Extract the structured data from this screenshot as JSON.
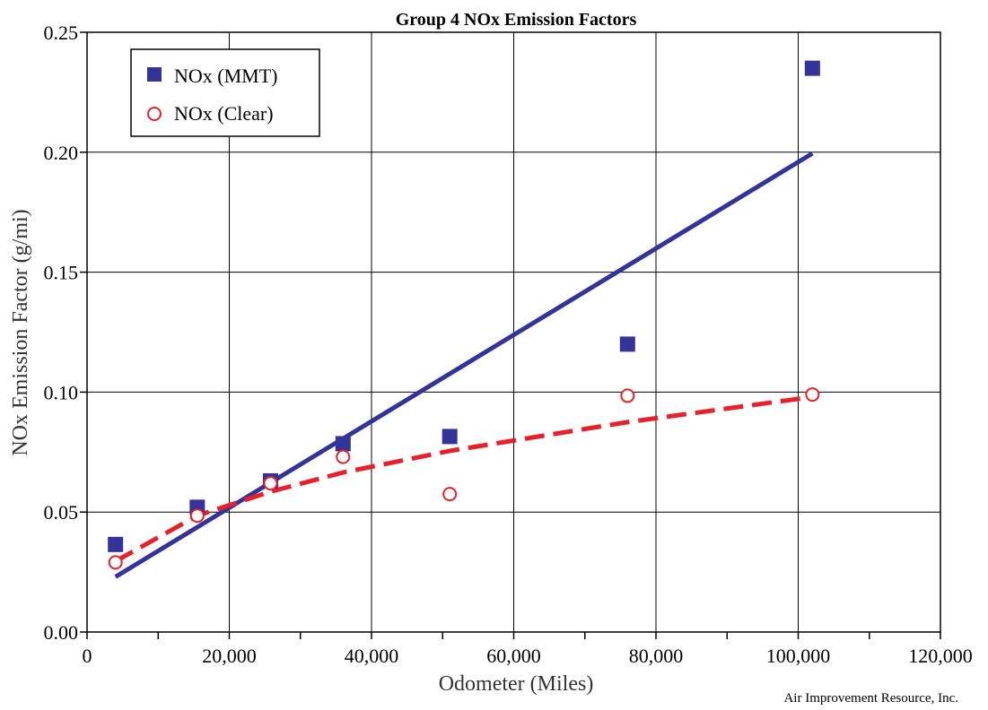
{
  "chart_data": {
    "type": "scatter",
    "title": "Group 4 NOx Emission Factors",
    "xlabel": "Odometer (Miles)",
    "ylabel": "NOx Emission Factor (g/mi)",
    "xlim": [
      0,
      120000
    ],
    "ylim": [
      0,
      0.25
    ],
    "x_ticks": [
      "0",
      "20,000",
      "40,000",
      "60,000",
      "80,000",
      "100,000",
      "120,000"
    ],
    "y_ticks": [
      "0.00",
      "0.05",
      "0.10",
      "0.15",
      "0.20",
      "0.25"
    ],
    "grid": true,
    "legend_position": "top-left",
    "series": [
      {
        "name": "NOx (MMT)",
        "marker": "filled-square",
        "color": "#33339a",
        "x": [
          4000,
          15500,
          25800,
          36000,
          51000,
          76000,
          102000
        ],
        "y": [
          0.0365,
          0.052,
          0.063,
          0.0785,
          0.0815,
          0.12,
          0.235
        ]
      },
      {
        "name": "NOx (Clear)",
        "marker": "open-circle",
        "color": "#e8202a",
        "x": [
          4000,
          15500,
          25800,
          36000,
          51000,
          76000,
          102000
        ],
        "y": [
          0.029,
          0.0485,
          0.062,
          0.073,
          0.0575,
          0.0985,
          0.099
        ]
      }
    ],
    "trendlines": [
      {
        "series": "NOx (MMT)",
        "style": "solid",
        "color": "#33339a",
        "x": [
          4000,
          102000
        ],
        "y": [
          0.023,
          0.1995
        ]
      },
      {
        "series": "NOx (Clear)",
        "style": "dashed",
        "color": "#e8202a",
        "x": [
          4000,
          15500,
          25800,
          36000,
          51000,
          76000,
          102000
        ],
        "y": [
          0.0295,
          0.0485,
          0.0585,
          0.0665,
          0.0755,
          0.0875,
          0.098
        ]
      }
    ],
    "credit": "Air Improvement Resource, Inc."
  }
}
